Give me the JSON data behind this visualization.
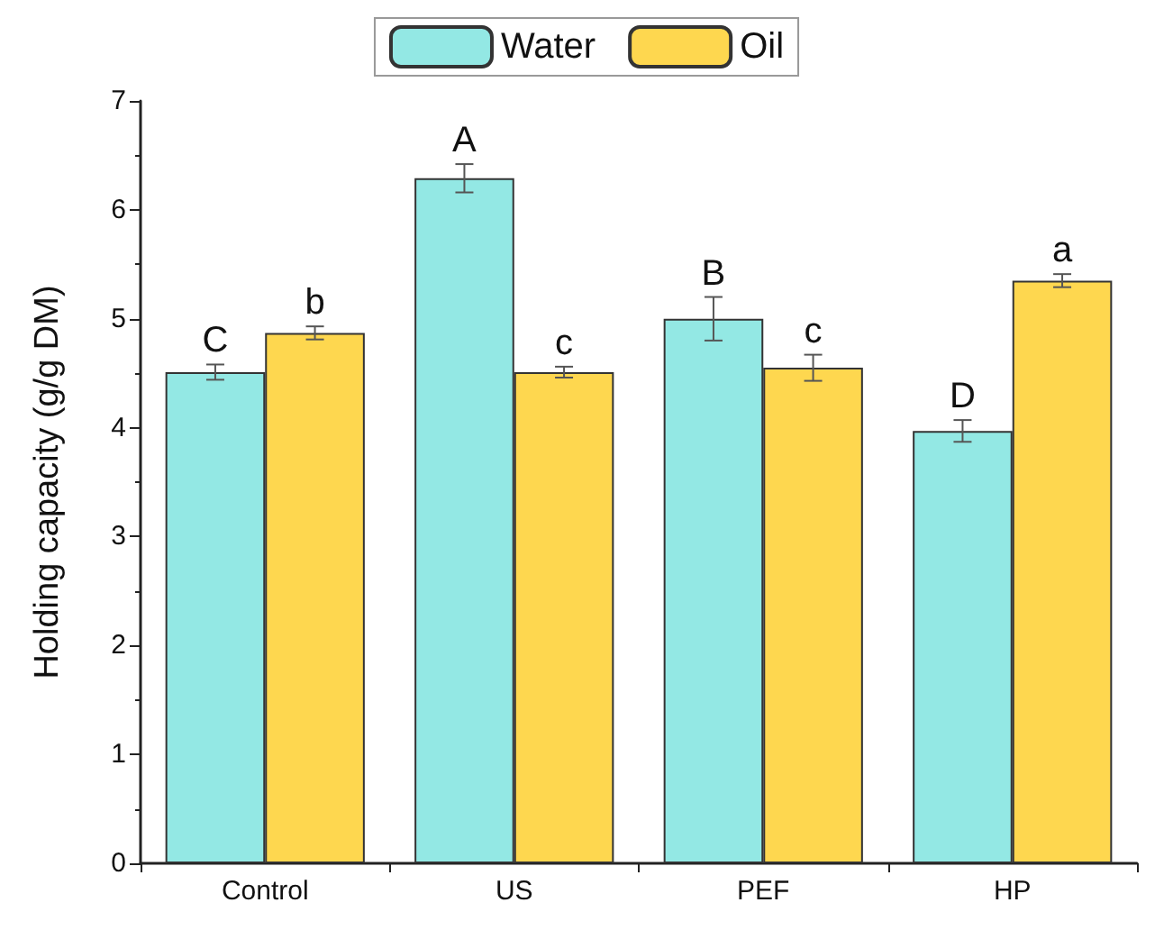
{
  "chart_data": {
    "type": "bar",
    "ylabel": "Holding capacity (g/g DM)",
    "categories": [
      "Control",
      "US",
      "PEF",
      "HP"
    ],
    "series": [
      {
        "name": "Water",
        "color": "#93e8e4",
        "values": [
          4.51,
          6.29,
          5.0,
          3.97
        ],
        "errors": [
          0.07,
          0.13,
          0.2,
          0.1
        ],
        "value_labels": [
          "C",
          "A",
          "B",
          "D"
        ]
      },
      {
        "name": "Oil",
        "color": "#fed74f",
        "values": [
          4.87,
          4.51,
          4.55,
          5.35
        ],
        "errors": [
          0.06,
          0.05,
          0.12,
          0.06
        ],
        "value_labels": [
          "b",
          "c",
          "c",
          "a"
        ]
      }
    ],
    "ylim": [
      0,
      7
    ],
    "yticks": [
      0,
      1,
      2,
      3,
      4,
      5,
      6,
      7
    ],
    "grid": false,
    "legend": "top"
  }
}
